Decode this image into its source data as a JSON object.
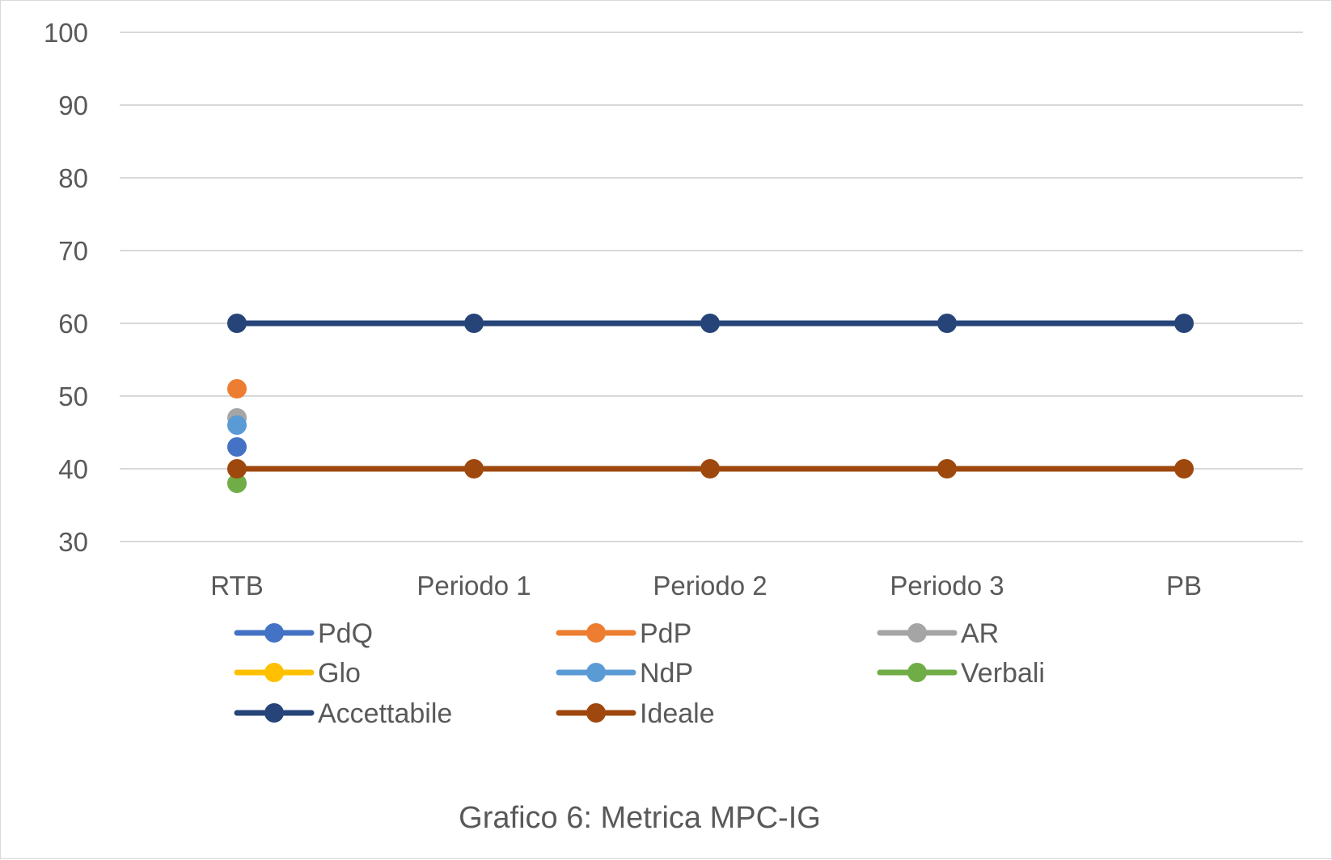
{
  "chart_data": {
    "type": "line",
    "categories": [
      "RTB",
      "Periodo 1",
      "Periodo 2",
      "Periodo 3",
      "PB"
    ],
    "y_ticks": [
      "100",
      "90",
      "80",
      "70",
      "60",
      "50",
      "40",
      "30"
    ],
    "ylim": [
      30,
      100
    ],
    "grid": true,
    "legend_position": "bottom",
    "caption": "Grafico 6: Metrica MPC-IG",
    "series": [
      {
        "name": "PdQ",
        "color": "#4472c4",
        "values": [
          43,
          null,
          null,
          null,
          null
        ]
      },
      {
        "name": "PdP",
        "color": "#ed7d31",
        "values": [
          51,
          null,
          null,
          null,
          null
        ]
      },
      {
        "name": "AR",
        "color": "#a5a5a5",
        "values": [
          47,
          null,
          null,
          null,
          null
        ]
      },
      {
        "name": "Glo",
        "color": "#ffc000",
        "values": [
          null,
          null,
          null,
          null,
          null
        ]
      },
      {
        "name": "NdP",
        "color": "#5b9bd5",
        "values": [
          46,
          null,
          null,
          null,
          null
        ]
      },
      {
        "name": "Verbali",
        "color": "#70ad47",
        "values": [
          38,
          null,
          null,
          null,
          null
        ]
      },
      {
        "name": "Accettabile",
        "color": "#264478",
        "values": [
          60,
          60,
          60,
          60,
          60
        ]
      },
      {
        "name": "Ideale",
        "color": "#9e480e",
        "values": [
          40,
          40,
          40,
          40,
          40
        ]
      }
    ]
  }
}
